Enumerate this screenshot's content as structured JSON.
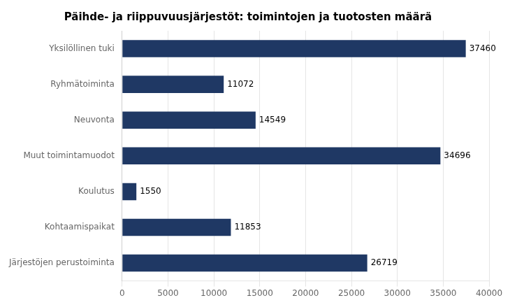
{
  "chart_data": {
    "type": "bar",
    "orientation": "horizontal",
    "title": "Päihde- ja riippuvuusjärjestöt: toimintojen ja tuotosten määrä",
    "categories": [
      "Järjestöjen perustoiminta",
      "Kohtaamispaikat",
      "Koulutus",
      "Muut toimintamuodot",
      "Neuvonta",
      "Ryhmätoiminta",
      "Yksilöllinen tuki"
    ],
    "values": [
      26719,
      11853,
      1550,
      34696,
      14549,
      11072,
      37460
    ],
    "color": "#1F3864",
    "xlim": [
      0,
      40000
    ],
    "xticks": [
      0,
      5000,
      10000,
      15000,
      20000,
      25000,
      30000,
      35000,
      40000
    ],
    "grid": true,
    "data_labels": true
  }
}
